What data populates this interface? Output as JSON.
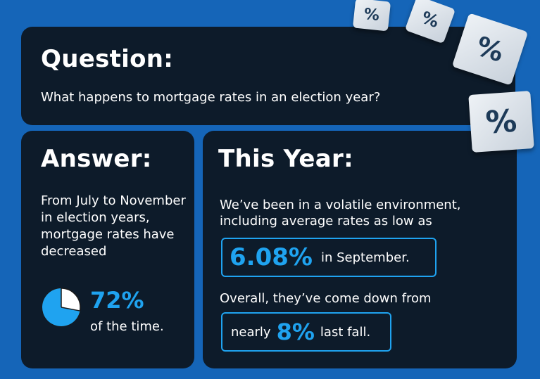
{
  "question": {
    "title": "Question:",
    "text": "What happens to mortgage rates in an election year?"
  },
  "answer": {
    "title": "Answer:",
    "text": "From July to November in election years, mortgage rates have decreased",
    "stat_value": "72%",
    "stat_fraction": 0.72,
    "stat_sub": "of the time."
  },
  "this_year": {
    "title": "This Year:",
    "text1": "We’ve been in a volatile environment, including average rates as low as",
    "stat1_value": "6.08%",
    "stat1_suffix": "in September.",
    "text2": "Overall, they’ve come down from",
    "stat2_prefix": "nearly",
    "stat2_value": "8%",
    "stat2_suffix": "last fall."
  },
  "decorations": {
    "percent_symbol": "%"
  },
  "colors": {
    "background": "#1565b8",
    "card": "#0d1b2a",
    "accent": "#1fa3f0",
    "pie_rest": "#ffffff"
  }
}
